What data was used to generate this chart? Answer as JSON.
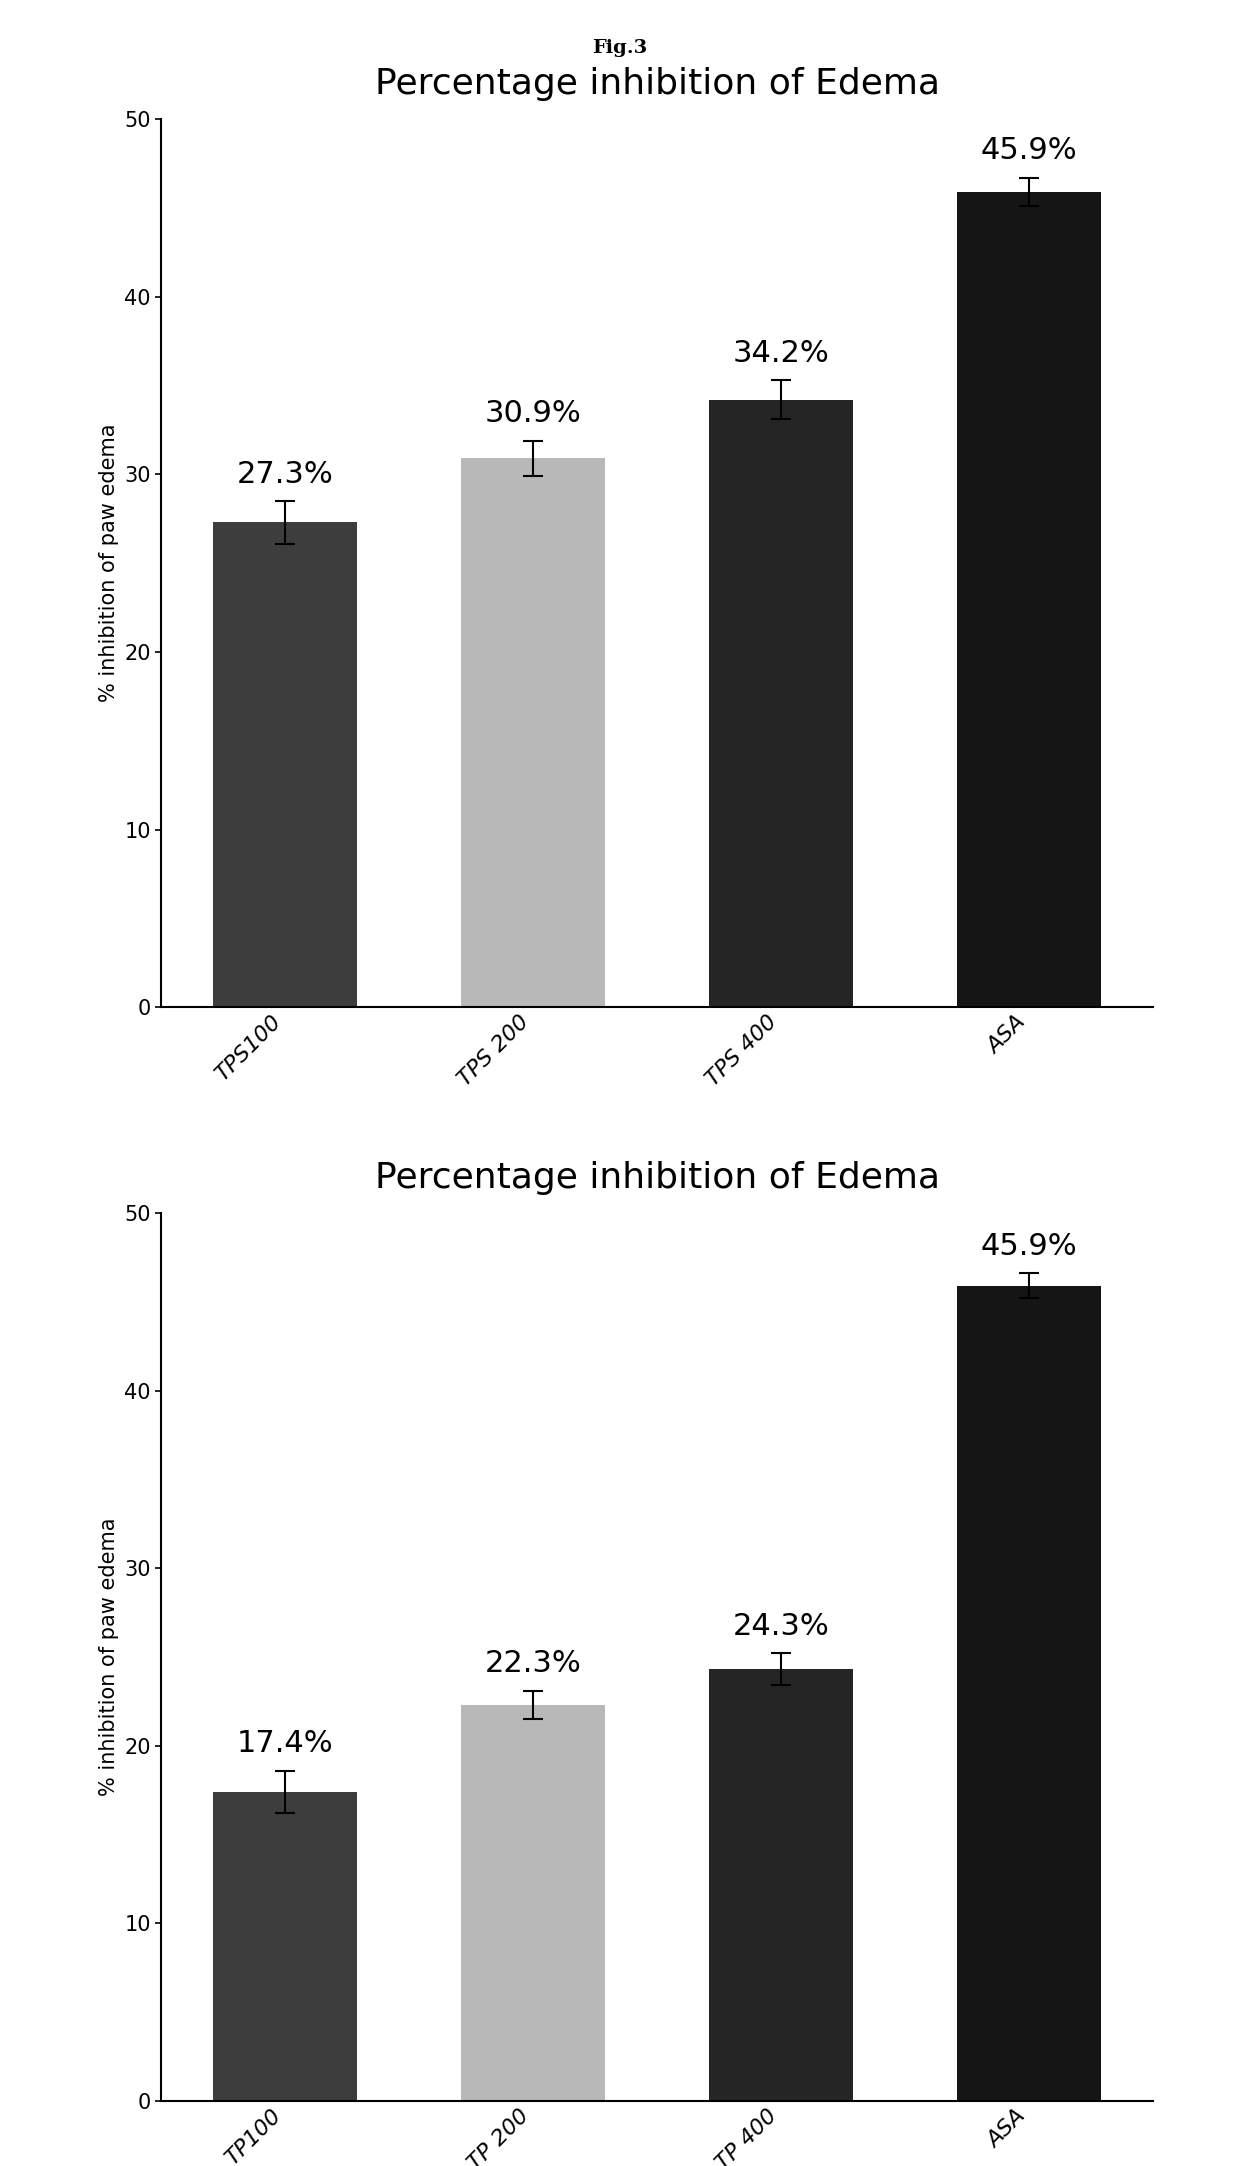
{
  "fig_title": "Fig.3",
  "chart1": {
    "title": "Percentage inhibition of Edema",
    "categories": [
      "TPS100",
      "TPS 200",
      "TPS 400",
      "ASA"
    ],
    "values": [
      27.3,
      30.9,
      34.2,
      45.9
    ],
    "errors": [
      1.2,
      1.0,
      1.1,
      0.8
    ],
    "labels": [
      "27.3%",
      "30.9%",
      "34.2%",
      "45.9%"
    ],
    "bar_colors": [
      "#3d3d3d",
      "#b8b8b8",
      "#252525",
      "#151515"
    ],
    "ylabel": "% inhibition of paw edema",
    "ylim": [
      0,
      50
    ],
    "yticks": [
      0,
      10,
      20,
      30,
      40,
      50
    ]
  },
  "chart2": {
    "title": "Percentage inhibition of Edema",
    "categories": [
      "TP100",
      "TP 200",
      "TP 400",
      "ASA"
    ],
    "values": [
      17.4,
      22.3,
      24.3,
      45.9
    ],
    "errors": [
      1.2,
      0.8,
      0.9,
      0.7
    ],
    "labels": [
      "17.4%",
      "22.3%",
      "24.3%",
      "45.9%"
    ],
    "bar_colors": [
      "#3d3d3d",
      "#b8b8b8",
      "#252525",
      "#151515"
    ],
    "ylabel": "% inhibition of paw edema",
    "ylim": [
      0,
      50
    ],
    "yticks": [
      0,
      10,
      20,
      30,
      40,
      50
    ]
  },
  "background_color": "#ffffff",
  "fig_title_fontsize": 14,
  "chart_title_fontsize": 26,
  "bar_label_fontsize": 22,
  "ylabel_fontsize": 15,
  "tick_fontsize": 15,
  "xtick_fontsize": 16
}
